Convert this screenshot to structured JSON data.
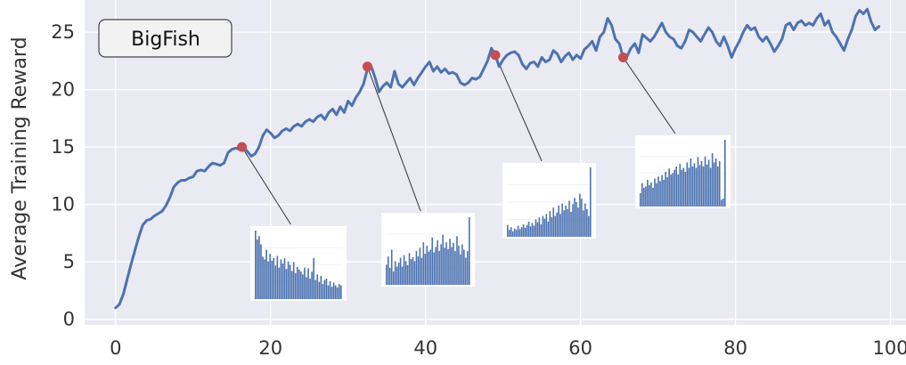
{
  "chart_data": {
    "type": "line",
    "title": "",
    "annotation_label": "BigFish",
    "xlabel": "",
    "ylabel": "Average Training Reward",
    "xlim": [
      -4,
      102
    ],
    "ylim": [
      -0.5,
      27.8
    ],
    "xticks": [
      0,
      20,
      40,
      60,
      80,
      100
    ],
    "yticks": [
      0,
      5,
      10,
      15,
      20,
      25
    ],
    "grid": true,
    "colors": {
      "background": "#EAEAF2",
      "grid": "#FFFFFF",
      "line": "#4C72B0",
      "marker": "#C44E52",
      "inset_bars": "#4C72B0"
    },
    "series": [
      {
        "values": [
          [
            0.0,
            1.0
          ],
          [
            0.5,
            1.3
          ],
          [
            1.0,
            2.2
          ],
          [
            1.5,
            3.5
          ],
          [
            2.0,
            4.8
          ],
          [
            2.5,
            6.0
          ],
          [
            3.0,
            7.2
          ],
          [
            3.5,
            8.2
          ],
          [
            4.0,
            8.6
          ],
          [
            4.5,
            8.7
          ],
          [
            5.0,
            9.0
          ],
          [
            5.5,
            9.2
          ],
          [
            6.0,
            9.4
          ],
          [
            6.5,
            9.9
          ],
          [
            7.0,
            10.6
          ],
          [
            7.5,
            11.5
          ],
          [
            8.0,
            11.9
          ],
          [
            8.5,
            12.1
          ],
          [
            9.0,
            12.1
          ],
          [
            9.5,
            12.3
          ],
          [
            10.0,
            12.4
          ],
          [
            10.5,
            12.9
          ],
          [
            11.0,
            13.0
          ],
          [
            11.5,
            12.9
          ],
          [
            12.0,
            13.3
          ],
          [
            12.5,
            13.6
          ],
          [
            13.0,
            13.5
          ],
          [
            13.5,
            13.4
          ],
          [
            14.0,
            13.6
          ],
          [
            14.5,
            14.5
          ],
          [
            15.0,
            14.8
          ],
          [
            15.5,
            14.9
          ],
          [
            16.0,
            14.8
          ],
          [
            16.5,
            15.0
          ],
          [
            17.0,
            14.6
          ],
          [
            17.5,
            14.2
          ],
          [
            18.0,
            14.4
          ],
          [
            18.5,
            15.0
          ],
          [
            19.0,
            16.0
          ],
          [
            19.5,
            16.5
          ],
          [
            20.0,
            16.2
          ],
          [
            20.5,
            15.8
          ],
          [
            21.0,
            16.0
          ],
          [
            21.5,
            16.4
          ],
          [
            22.0,
            16.6
          ],
          [
            22.5,
            16.4
          ],
          [
            23.0,
            16.8
          ],
          [
            23.5,
            17.0
          ],
          [
            24.0,
            16.8
          ],
          [
            24.5,
            17.2
          ],
          [
            25.0,
            17.4
          ],
          [
            25.5,
            17.2
          ],
          [
            26.0,
            17.6
          ],
          [
            26.5,
            17.8
          ],
          [
            27.0,
            17.4
          ],
          [
            27.5,
            18.0
          ],
          [
            28.0,
            18.3
          ],
          [
            28.5,
            17.8
          ],
          [
            29.0,
            18.5
          ],
          [
            29.5,
            18.0
          ],
          [
            30.0,
            19.0
          ],
          [
            30.5,
            18.6
          ],
          [
            31.0,
            19.3
          ],
          [
            31.5,
            19.8
          ],
          [
            32.0,
            20.5
          ],
          [
            32.5,
            21.8
          ],
          [
            33.0,
            22.0
          ],
          [
            33.5,
            21.0
          ],
          [
            34.0,
            19.8
          ],
          [
            34.5,
            20.3
          ],
          [
            35.0,
            20.6
          ],
          [
            35.5,
            20.2
          ],
          [
            36.0,
            21.6
          ],
          [
            36.5,
            20.5
          ],
          [
            37.0,
            20.2
          ],
          [
            37.5,
            20.6
          ],
          [
            38.0,
            21.0
          ],
          [
            38.5,
            20.4
          ],
          [
            39.0,
            21.0
          ],
          [
            39.5,
            21.5
          ],
          [
            40.0,
            22.0
          ],
          [
            40.5,
            22.4
          ],
          [
            41.0,
            21.6
          ],
          [
            41.5,
            22.0
          ],
          [
            42.0,
            21.5
          ],
          [
            42.5,
            21.8
          ],
          [
            43.0,
            21.4
          ],
          [
            43.5,
            21.5
          ],
          [
            44.0,
            21.3
          ],
          [
            44.5,
            20.6
          ],
          [
            45.0,
            20.4
          ],
          [
            45.5,
            20.6
          ],
          [
            46.0,
            21.0
          ],
          [
            46.5,
            20.9
          ],
          [
            47.0,
            21.1
          ],
          [
            47.5,
            21.8
          ],
          [
            48.0,
            22.5
          ],
          [
            48.5,
            23.6
          ],
          [
            49.0,
            23.0
          ],
          [
            49.5,
            22.0
          ],
          [
            50.0,
            22.6
          ],
          [
            50.5,
            23.0
          ],
          [
            51.0,
            23.2
          ],
          [
            51.5,
            23.3
          ],
          [
            52.0,
            23.0
          ],
          [
            52.5,
            22.2
          ],
          [
            53.0,
            21.8
          ],
          [
            53.5,
            22.3
          ],
          [
            54.0,
            22.4
          ],
          [
            54.5,
            22.0
          ],
          [
            55.0,
            22.8
          ],
          [
            55.5,
            22.4
          ],
          [
            56.0,
            22.6
          ],
          [
            56.5,
            23.4
          ],
          [
            57.0,
            23.1
          ],
          [
            57.5,
            22.4
          ],
          [
            58.0,
            22.9
          ],
          [
            58.5,
            23.2
          ],
          [
            59.0,
            22.6
          ],
          [
            59.5,
            23.0
          ],
          [
            60.0,
            22.7
          ],
          [
            60.5,
            23.5
          ],
          [
            61.0,
            23.8
          ],
          [
            61.5,
            24.2
          ],
          [
            62.0,
            23.4
          ],
          [
            62.5,
            24.6
          ],
          [
            63.0,
            25.0
          ],
          [
            63.5,
            26.2
          ],
          [
            64.0,
            25.6
          ],
          [
            64.5,
            24.4
          ],
          [
            65.0,
            24.0
          ],
          [
            65.5,
            22.8
          ],
          [
            66.0,
            22.9
          ],
          [
            66.5,
            23.6
          ],
          [
            67.0,
            24.0
          ],
          [
            67.5,
            23.2
          ],
          [
            68.0,
            24.8
          ],
          [
            68.5,
            24.5
          ],
          [
            69.0,
            24.2
          ],
          [
            69.5,
            24.6
          ],
          [
            70.0,
            25.2
          ],
          [
            70.5,
            25.8
          ],
          [
            71.0,
            25.0
          ],
          [
            71.5,
            24.6
          ],
          [
            72.0,
            24.4
          ],
          [
            72.5,
            23.8
          ],
          [
            73.0,
            23.6
          ],
          [
            73.5,
            24.2
          ],
          [
            74.0,
            25.2
          ],
          [
            74.5,
            25.0
          ],
          [
            75.0,
            24.6
          ],
          [
            75.5,
            24.2
          ],
          [
            76.0,
            24.8
          ],
          [
            76.5,
            25.4
          ],
          [
            77.0,
            25.0
          ],
          [
            77.5,
            24.2
          ],
          [
            78.0,
            23.8
          ],
          [
            78.5,
            24.6
          ],
          [
            79.0,
            23.8
          ],
          [
            79.5,
            22.8
          ],
          [
            80.0,
            23.6
          ],
          [
            80.5,
            24.2
          ],
          [
            81.0,
            25.0
          ],
          [
            81.5,
            25.6
          ],
          [
            82.0,
            25.2
          ],
          [
            82.5,
            25.4
          ],
          [
            83.0,
            24.6
          ],
          [
            83.5,
            24.2
          ],
          [
            84.0,
            24.6
          ],
          [
            84.5,
            24.0
          ],
          [
            85.0,
            23.3
          ],
          [
            85.5,
            23.8
          ],
          [
            86.0,
            24.4
          ],
          [
            86.5,
            25.6
          ],
          [
            87.0,
            25.8
          ],
          [
            87.5,
            25.2
          ],
          [
            88.0,
            25.8
          ],
          [
            88.5,
            26.0
          ],
          [
            89.0,
            25.6
          ],
          [
            89.5,
            25.8
          ],
          [
            90.0,
            25.6
          ],
          [
            90.5,
            26.2
          ],
          [
            91.0,
            26.6
          ],
          [
            91.5,
            25.6
          ],
          [
            92.0,
            26.0
          ],
          [
            92.5,
            25.0
          ],
          [
            93.0,
            24.6
          ],
          [
            93.5,
            24.0
          ],
          [
            94.0,
            23.4
          ],
          [
            94.5,
            24.4
          ],
          [
            95.0,
            25.2
          ],
          [
            95.5,
            26.4
          ],
          [
            96.0,
            26.9
          ],
          [
            96.5,
            26.6
          ],
          [
            97.0,
            27.0
          ],
          [
            97.5,
            25.9
          ],
          [
            98.0,
            25.2
          ],
          [
            98.5,
            25.5
          ]
        ]
      }
    ],
    "markers": [
      {
        "x": 16.3,
        "y": 15.0
      },
      {
        "x": 32.5,
        "y": 22.0
      },
      {
        "x": 49.0,
        "y": 23.0
      },
      {
        "x": 65.5,
        "y": 22.8
      }
    ],
    "insets": [
      {
        "values": [
          1.0,
          0.87,
          0.92,
          0.8,
          0.62,
          0.58,
          0.72,
          0.55,
          0.66,
          0.56,
          0.6,
          0.49,
          0.63,
          0.46,
          0.58,
          0.52,
          0.6,
          0.44,
          0.55,
          0.5,
          0.41,
          0.54,
          0.38,
          0.47,
          0.43,
          0.4,
          0.36,
          0.46,
          0.32,
          0.45,
          0.3,
          0.4,
          0.6,
          0.28,
          0.36,
          0.25,
          0.34,
          0.22,
          0.28,
          0.3,
          0.2,
          0.26,
          0.18,
          0.24,
          0.2,
          0.17,
          0.22,
          0.2
        ]
      },
      {
        "values": [
          0.3,
          0.42,
          0.25,
          0.52,
          0.2,
          0.35,
          0.27,
          0.33,
          0.4,
          0.27,
          0.44,
          0.35,
          0.29,
          0.47,
          0.38,
          0.41,
          0.35,
          0.5,
          0.42,
          0.55,
          0.4,
          0.63,
          0.46,
          0.58,
          0.49,
          0.52,
          0.7,
          0.48,
          0.56,
          0.66,
          0.5,
          0.6,
          0.74,
          0.55,
          0.63,
          0.53,
          0.68,
          0.56,
          0.62,
          0.5,
          0.72,
          0.58,
          0.45,
          0.6,
          0.52,
          0.4,
          0.5,
          1.0
        ]
      },
      {
        "values": [
          0.17,
          0.1,
          0.14,
          0.08,
          0.12,
          0.1,
          0.16,
          0.11,
          0.14,
          0.18,
          0.13,
          0.17,
          0.22,
          0.15,
          0.2,
          0.16,
          0.25,
          0.21,
          0.28,
          0.18,
          0.3,
          0.26,
          0.33,
          0.22,
          0.37,
          0.28,
          0.42,
          0.3,
          0.35,
          0.45,
          0.33,
          0.48,
          0.38,
          0.45,
          0.4,
          0.52,
          0.36,
          0.47,
          0.56,
          0.5,
          0.42,
          0.62,
          0.55,
          0.38,
          0.48,
          0.4,
          0.3,
          1.0
        ]
      },
      {
        "values": [
          0.2,
          0.35,
          0.28,
          0.3,
          0.4,
          0.32,
          0.36,
          0.28,
          0.42,
          0.35,
          0.45,
          0.38,
          0.47,
          0.4,
          0.52,
          0.44,
          0.57,
          0.48,
          0.5,
          0.55,
          0.6,
          0.48,
          0.64,
          0.55,
          0.58,
          0.52,
          0.66,
          0.58,
          0.72,
          0.6,
          0.65,
          0.58,
          0.74,
          0.62,
          0.68,
          0.6,
          0.75,
          0.63,
          0.7,
          0.58,
          0.8,
          0.66,
          0.72,
          0.6,
          0.68,
          0.1,
          0.12,
          1.0
        ]
      }
    ]
  }
}
